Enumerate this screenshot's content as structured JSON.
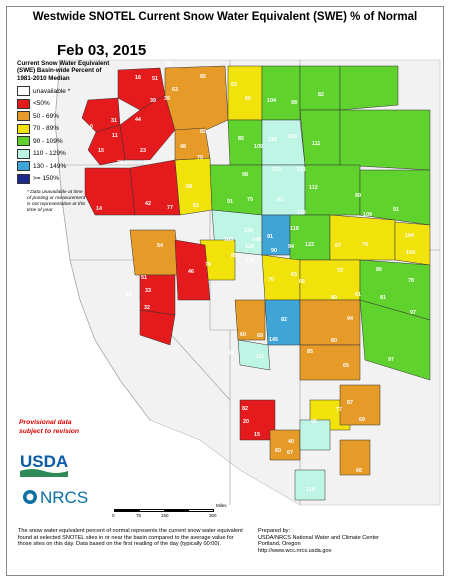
{
  "title": "Westwide SNOTEL Current Snow Water Equivalent (SWE) % of Normal",
  "date": "Feb 03, 2015",
  "legend": {
    "title": "Current Snow Water Equivalent (SWE) Basin-wide Percent of 1981-2010 Median",
    "items": [
      {
        "label": "unavailable *",
        "color": "#ffffff"
      },
      {
        "label": "<50%",
        "color": "#e41a1c"
      },
      {
        "label": "50 - 69%",
        "color": "#e69a28"
      },
      {
        "label": "70 - 89%",
        "color": "#f2e20c"
      },
      {
        "label": "90 - 109%",
        "color": "#5fd22d"
      },
      {
        "label": "110 - 129%",
        "color": "#bff5e5"
      },
      {
        "label": "130 - 149%",
        "color": "#3fa4d6"
      },
      {
        "label": ">= 150%",
        "color": "#1b2a8c"
      }
    ],
    "note": "* Data unavailable at time of posting or measurement is not representative at this time of year"
  },
  "provisional": "Provisional data subject to revision",
  "logos": {
    "usda": "USDA",
    "nrcs": "NRCS"
  },
  "scale": {
    "ticks": [
      "0",
      "75",
      "150",
      "300"
    ],
    "unit": "Miles"
  },
  "footer_left": "The snow water equivalent percent of normal represents the current snow water equivalent found at selected SNOTEL sites in or near the basin compared to the average value for those sites on this day. Data based on the first reading of the day (typically 00:00).",
  "footer_right": {
    "prepared": "Prepared by:",
    "org": "USDA/NRCS National Water and Climate Center",
    "city": "Portland, Oregon",
    "url": "http://www.wcc.nrcs.usda.gov"
  },
  "basin_labels": [
    {
      "v": "16"
    },
    {
      "v": "58"
    },
    {
      "v": "85"
    },
    {
      "v": "62"
    },
    {
      "v": "60"
    },
    {
      "v": "104"
    },
    {
      "v": "98"
    },
    {
      "v": "82"
    },
    {
      "v": "51"
    },
    {
      "v": "63"
    },
    {
      "v": "39"
    },
    {
      "v": "39"
    },
    {
      "v": "0"
    },
    {
      "v": "31"
    },
    {
      "v": "44"
    },
    {
      "v": "82"
    },
    {
      "v": "11"
    },
    {
      "v": "85"
    },
    {
      "v": "109"
    },
    {
      "v": "118"
    },
    {
      "v": "103"
    },
    {
      "v": "111"
    },
    {
      "v": "15"
    },
    {
      "v": "23"
    },
    {
      "v": "48"
    },
    {
      "v": "70"
    },
    {
      "v": "26"
    },
    {
      "v": "98"
    },
    {
      "v": "103"
    },
    {
      "v": "113"
    },
    {
      "v": "15"
    },
    {
      "v": "68"
    },
    {
      "v": "112"
    },
    {
      "v": "14"
    },
    {
      "v": "42"
    },
    {
      "v": "77"
    },
    {
      "v": "61"
    },
    {
      "v": "91"
    },
    {
      "v": "79"
    },
    {
      "v": "93"
    },
    {
      "v": "99"
    },
    {
      "v": "109"
    },
    {
      "v": "91"
    },
    {
      "v": "104"
    },
    {
      "v": "110"
    },
    {
      "v": "105"
    },
    {
      "v": "130"
    },
    {
      "v": "148"
    },
    {
      "v": "91"
    },
    {
      "v": "54"
    },
    {
      "v": "128"
    },
    {
      "v": "119"
    },
    {
      "v": "90"
    },
    {
      "v": "94"
    },
    {
      "v": "122"
    },
    {
      "v": "67"
    },
    {
      "v": "79"
    },
    {
      "v": "104"
    },
    {
      "v": "85"
    },
    {
      "v": "106"
    },
    {
      "v": "72"
    },
    {
      "v": "86"
    },
    {
      "v": "78"
    },
    {
      "v": "79"
    },
    {
      "v": "70"
    },
    {
      "v": "65"
    },
    {
      "v": "66"
    },
    {
      "v": "51"
    },
    {
      "v": "46"
    },
    {
      "v": "33"
    },
    {
      "v": "19"
    },
    {
      "v": "32"
    },
    {
      "v": "80"
    },
    {
      "v": "61"
    },
    {
      "v": "81"
    },
    {
      "v": "97"
    },
    {
      "v": "94"
    },
    {
      "v": "82"
    },
    {
      "v": "60"
    },
    {
      "v": "69"
    },
    {
      "v": "145"
    },
    {
      "v": "80"
    },
    {
      "v": "61"
    },
    {
      "v": "111"
    },
    {
      "v": "85"
    },
    {
      "v": "65"
    },
    {
      "v": "97"
    },
    {
      "v": "82"
    },
    {
      "v": "20"
    },
    {
      "v": "15"
    },
    {
      "v": "96"
    },
    {
      "v": "77"
    },
    {
      "v": "87"
    },
    {
      "v": "40"
    },
    {
      "v": "60"
    },
    {
      "v": "67"
    },
    {
      "v": "69"
    },
    {
      "v": "66"
    },
    {
      "v": "110"
    }
  ]
}
